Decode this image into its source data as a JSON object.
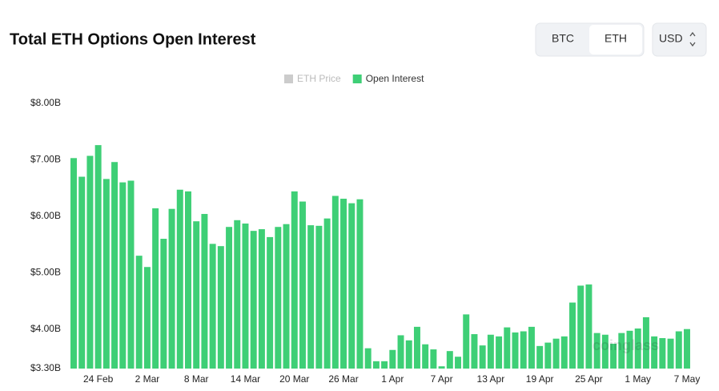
{
  "chart_data": {
    "type": "bar",
    "title": "Total ETH Options Open Interest",
    "toggle": {
      "options": [
        "BTC",
        "ETH"
      ],
      "selected": "ETH"
    },
    "currency": "USD",
    "watermark": "coinglass",
    "hidden_series": [
      {
        "name": "ETH Price",
        "color": "#cccccc"
      }
    ],
    "categories": [
      null,
      null,
      null,
      "24 Feb",
      null,
      null,
      null,
      null,
      null,
      "2 Mar",
      null,
      null,
      null,
      null,
      null,
      "8 Mar",
      null,
      null,
      null,
      null,
      null,
      "14 Mar",
      null,
      null,
      null,
      null,
      null,
      "20 Mar",
      null,
      null,
      null,
      null,
      null,
      "26 Mar",
      null,
      null,
      null,
      null,
      null,
      "1 Apr",
      null,
      null,
      null,
      null,
      null,
      "7 Apr",
      null,
      null,
      null,
      null,
      null,
      "13 Apr",
      null,
      null,
      null,
      null,
      null,
      "19 Apr",
      null,
      null,
      null,
      null,
      null,
      "25 Apr",
      null,
      null,
      null,
      null,
      null,
      "1 May",
      null,
      null,
      null,
      null,
      null,
      "7 May"
    ],
    "series": [
      {
        "name": "Open Interest",
        "color": "#3ecf76",
        "values": [
          7.03,
          6.7,
          7.07,
          7.26,
          6.66,
          6.96,
          6.6,
          6.63,
          5.3,
          5.1,
          6.14,
          5.6,
          6.13,
          6.47,
          6.44,
          5.91,
          6.04,
          5.51,
          5.47,
          5.81,
          5.93,
          5.87,
          5.74,
          5.77,
          5.63,
          5.81,
          5.86,
          6.44,
          6.26,
          5.84,
          5.83,
          5.96,
          6.36,
          6.31,
          6.23,
          6.3,
          3.66,
          3.43,
          3.43,
          3.63,
          3.89,
          3.8,
          4.04,
          3.73,
          3.64,
          3.34,
          3.61,
          3.51,
          4.26,
          3.91,
          3.71,
          3.9,
          3.87,
          4.03,
          3.94,
          3.96,
          4.04,
          3.7,
          3.76,
          3.83,
          3.87,
          4.47,
          4.77,
          4.79,
          3.93,
          3.9,
          3.74,
          3.93,
          3.97,
          4.01,
          4.21,
          3.87,
          3.84,
          3.83,
          3.96,
          4.0
        ]
      }
    ],
    "ylim": [
      3.3,
      8.0
    ],
    "yticks": [
      {
        "value": 3.3,
        "label": "$3.30B"
      },
      {
        "value": 4,
        "label": "$4.00B"
      },
      {
        "value": 5,
        "label": "$5.00B"
      },
      {
        "value": 6,
        "label": "$6.00B"
      },
      {
        "value": 7,
        "label": "$7.00B"
      },
      {
        "value": 8,
        "label": "$8.00B"
      }
    ],
    "grid": false
  }
}
